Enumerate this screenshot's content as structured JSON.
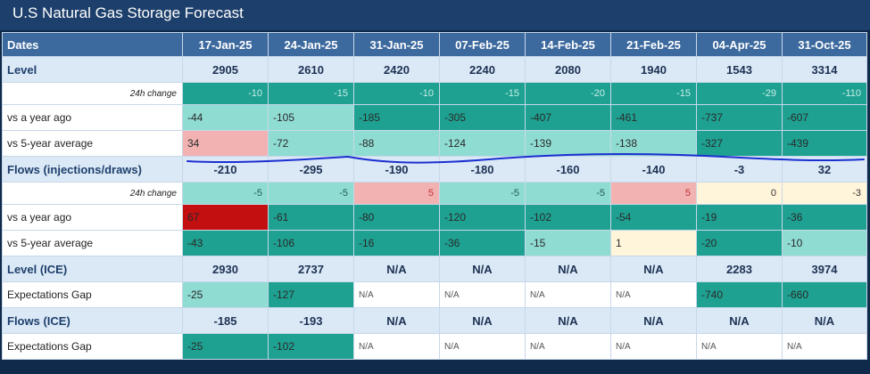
{
  "title": "U.S Natural Gas Storage Forecast",
  "header": {
    "label": "Dates",
    "dates": [
      "17-Jan-25",
      "24-Jan-25",
      "31-Jan-25",
      "07-Feb-25",
      "14-Feb-25",
      "21-Feb-25",
      "04-Apr-25",
      "31-Oct-25"
    ]
  },
  "rows": [
    {
      "kind": "main",
      "label": "Level",
      "values": [
        "2905",
        "2610",
        "2420",
        "2240",
        "2080",
        "1940",
        "1543",
        "3314"
      ]
    },
    {
      "kind": "sub",
      "label": "24h change",
      "values": [
        "-10",
        "-15",
        "-10",
        "-15",
        "-20",
        "-15",
        "-29",
        "-110"
      ],
      "shades": [
        "cd",
        "cd",
        "cd",
        "cd",
        "cd",
        "cd",
        "cd",
        "cd"
      ]
    },
    {
      "kind": "row",
      "label": "vs a year ago",
      "values": [
        "-44",
        "-105",
        "-185",
        "-305",
        "-407",
        "-461",
        "-737",
        "-607"
      ],
      "shades": [
        "cl",
        "cl",
        "cd",
        "cd",
        "cd",
        "cd",
        "cd",
        "cd"
      ]
    },
    {
      "kind": "row",
      "label": "vs 5-year average",
      "values": [
        "34",
        "-72",
        "-88",
        "-124",
        "-139",
        "-138",
        "-327",
        "-439"
      ],
      "shades": [
        "cp",
        "cl",
        "cl",
        "cl",
        "cl",
        "cl",
        "cd",
        "cd"
      ]
    },
    {
      "kind": "main",
      "label": "Flows (injections/draws)",
      "values": [
        "-210",
        "-295",
        "-190",
        "-180",
        "-160",
        "-140",
        "-3",
        "32"
      ]
    },
    {
      "kind": "sub",
      "label": "24h change",
      "values": [
        "-5",
        "-5",
        "5",
        "-5",
        "-5",
        "5",
        "0",
        "-3"
      ],
      "shades": [
        "cl",
        "cl",
        "cp",
        "cl",
        "cl",
        "cp",
        "cy",
        "cy"
      ]
    },
    {
      "kind": "row",
      "label": "vs a year ago",
      "values": [
        "67",
        "-61",
        "-80",
        "-120",
        "-102",
        "-54",
        "-19",
        "-36"
      ],
      "shades": [
        "cr",
        "cd",
        "cd",
        "cd",
        "cd",
        "cd",
        "cd",
        "cd"
      ]
    },
    {
      "kind": "row",
      "label": "vs 5-year average",
      "values": [
        "-43",
        "-106",
        "-16",
        "-36",
        "-15",
        "1",
        "-20",
        "-10"
      ],
      "shades": [
        "cd",
        "cd",
        "cd",
        "cd",
        "cl",
        "cy",
        "cd",
        "cl"
      ]
    },
    {
      "kind": "main",
      "label": "Level (ICE)",
      "values": [
        "2930",
        "2737",
        "N/A",
        "N/A",
        "N/A",
        "N/A",
        "2283",
        "3974"
      ]
    },
    {
      "kind": "row",
      "label": "Expectations Gap",
      "values": [
        "-25",
        "-127",
        "N/A",
        "N/A",
        "N/A",
        "N/A",
        "-740",
        "-660"
      ],
      "shades": [
        "cl",
        "cd",
        "na",
        "na",
        "na",
        "na",
        "cd",
        "cd"
      ]
    },
    {
      "kind": "main",
      "label": "Flows (ICE)",
      "values": [
        "-185",
        "-193",
        "N/A",
        "N/A",
        "N/A",
        "N/A",
        "N/A",
        "N/A"
      ]
    },
    {
      "kind": "row",
      "label": "Expectations Gap",
      "values": [
        "-25",
        "-102",
        "N/A",
        "N/A",
        "N/A",
        "N/A",
        "N/A",
        "N/A"
      ],
      "shades": [
        "cd",
        "cd",
        "na",
        "na",
        "na",
        "na",
        "na",
        "na"
      ]
    }
  ],
  "annotation": {
    "name": "hand-drawn-underline",
    "color": "#1b2fd0"
  }
}
